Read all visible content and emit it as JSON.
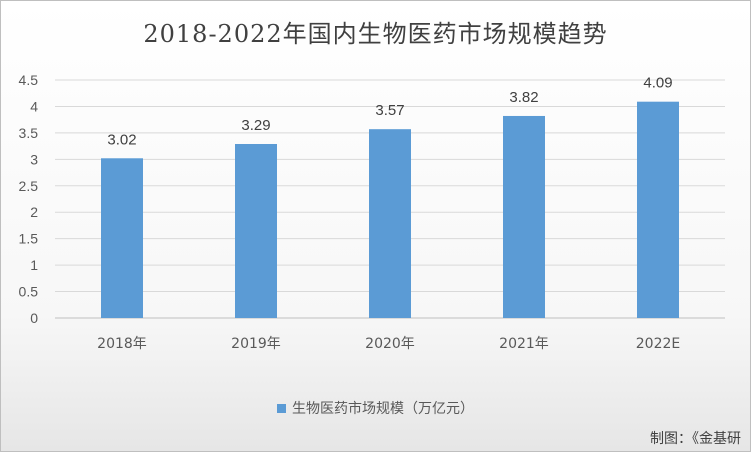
{
  "chart_data": {
    "type": "bar",
    "title": "2018-2022年国内生物医药市场规模趋势",
    "categories": [
      "2018年",
      "2019年",
      "2020年",
      "2021年",
      "2022E"
    ],
    "series": [
      {
        "name": "生物医药市场规模（万亿元）",
        "values": [
          3.02,
          3.29,
          3.57,
          3.82,
          4.09
        ]
      }
    ],
    "yticks": [
      "0",
      "0.5",
      "1",
      "1.5",
      "2",
      "2.5",
      "3",
      "3.5",
      "4",
      "4.5"
    ],
    "ylim": [
      0,
      4.5
    ],
    "grid": true,
    "legend_position": "bottom",
    "colors": {
      "bar": "#5b9bd5",
      "grid": "#d9d9d9"
    }
  },
  "footer": {
    "credit": "制图：《金基研"
  }
}
